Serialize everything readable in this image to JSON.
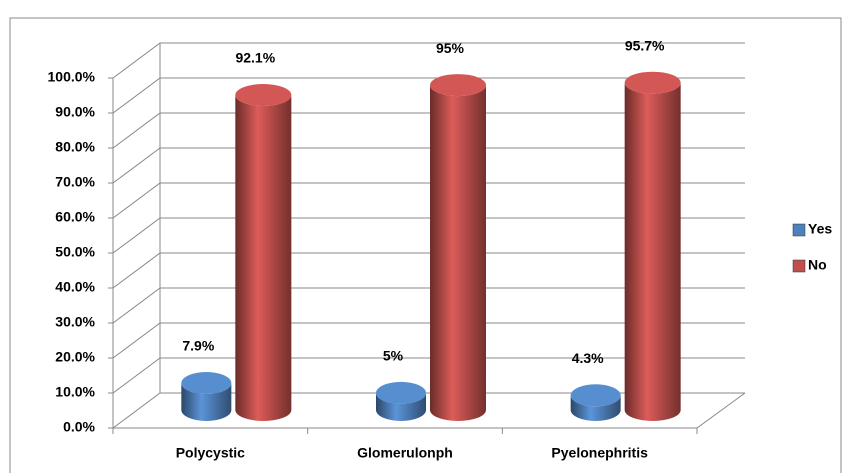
{
  "chart_data": {
    "type": "bar3d",
    "categories": [
      "Polycystic",
      "Glomerulonph",
      "Pyelonephritis"
    ],
    "series": [
      {
        "name": "Yes",
        "color": "#4f81bd",
        "values": [
          7.9,
          5,
          4.3
        ],
        "value_labels": [
          "7.9%",
          "5%",
          "4.3%"
        ]
      },
      {
        "name": "No",
        "color": "#c0504d",
        "values": [
          92.1,
          95,
          95.7
        ],
        "value_labels": [
          "92.1%",
          "95%",
          "95.7%"
        ]
      }
    ],
    "ylim": [
      0,
      100
    ],
    "yticks": [
      {
        "value": 0,
        "label": "0.0%"
      },
      {
        "value": 10,
        "label": "10.0%"
      },
      {
        "value": 20,
        "label": "20.0%"
      },
      {
        "value": 30,
        "label": "30.0%"
      },
      {
        "value": 40,
        "label": "40.0%"
      },
      {
        "value": 50,
        "label": "50.0%"
      },
      {
        "value": 60,
        "label": "60.0%"
      },
      {
        "value": 70,
        "label": "70.0%"
      },
      {
        "value": 80,
        "label": "80.0%"
      },
      {
        "value": 90,
        "label": "90.0%"
      },
      {
        "value": 100,
        "label": "100.0%"
      }
    ],
    "grid": true,
    "legend": "right"
  }
}
